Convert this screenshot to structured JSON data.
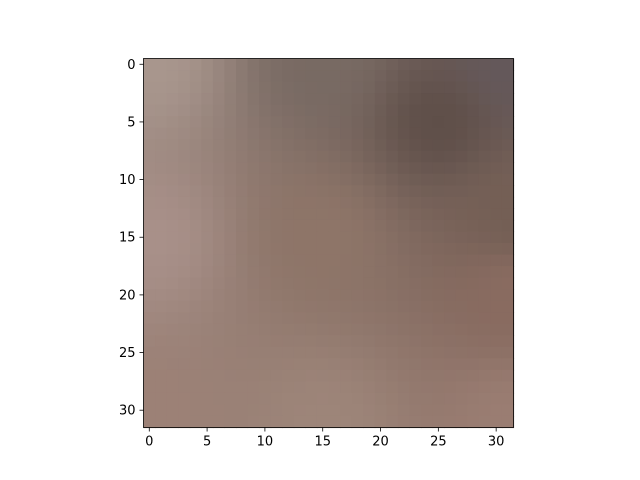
{
  "chart_data": {
    "type": "heatmap",
    "title": "",
    "xlabel": "",
    "ylabel": "",
    "rows": 32,
    "cols": 32,
    "xlim": [
      -0.5,
      31.5
    ],
    "ylim": [
      31.5,
      -0.5
    ],
    "y_axis_inverted": true,
    "grid": false,
    "colorbar": false,
    "interpolation": "smooth",
    "x_ticks": [
      0,
      5,
      10,
      15,
      20,
      25,
      30
    ],
    "y_ticks": [
      0,
      5,
      10,
      15,
      20,
      25,
      30
    ],
    "x_tick_labels": [
      "0",
      "5",
      "10",
      "15",
      "20",
      "25",
      "30"
    ],
    "y_tick_labels": [
      "0",
      "5",
      "10",
      "15",
      "20",
      "25",
      "30"
    ],
    "color_control_points": {
      "top_left": "#a8968d",
      "top_center": "#786a63",
      "top_right": "#64585a",
      "upper_right_dark": "#5f4f49",
      "middle_left": "#a89089",
      "center": "#8e7568",
      "middle_right": "#745f55",
      "lower_right": "#896b60",
      "bottom_left": "#9c8176",
      "bottom_center": "#9d8579",
      "bottom_right": "#9a7d72"
    }
  }
}
